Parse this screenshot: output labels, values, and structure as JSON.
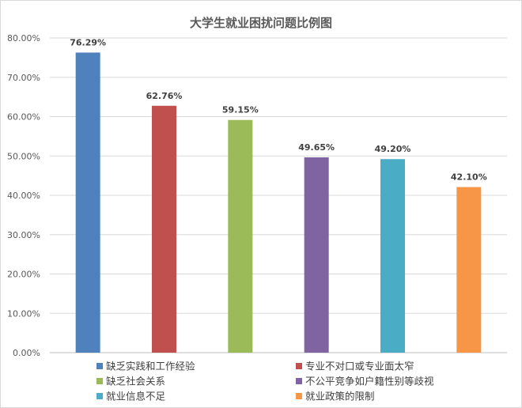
{
  "chart_data": {
    "type": "bar",
    "title": "大学生就业困扰问题比例图",
    "categories": [
      "缺乏实践和工作经验",
      "专业不对口或专业面太窄",
      "缺乏社会关系",
      "不公平竞争如户籍性别等歧视",
      "就业信息不足",
      "就业政策的限制"
    ],
    "values": [
      76.29,
      62.76,
      59.15,
      49.65,
      49.2,
      42.1
    ],
    "data_labels": [
      "76.29%",
      "62.76%",
      "59.15%",
      "49.65%",
      "49.20%",
      "42.10%"
    ],
    "colors": [
      "#4f81bd",
      "#c0504d",
      "#9bbb59",
      "#8064a2",
      "#4bacc6",
      "#f79646"
    ],
    "yticks": [
      "0.00%",
      "10.00%",
      "20.00%",
      "30.00%",
      "40.00%",
      "50.00%",
      "60.00%",
      "70.00%",
      "80.00%"
    ],
    "ylim": [
      0,
      80
    ],
    "ystep": 10,
    "grid": true,
    "legend_position": "bottom",
    "xlabel": "",
    "ylabel": ""
  }
}
